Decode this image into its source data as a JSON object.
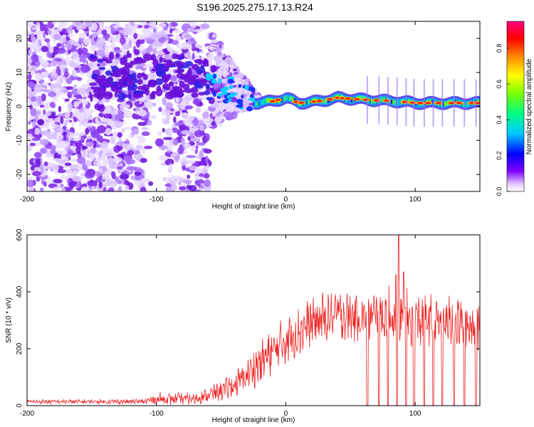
{
  "title": "S196.2025.275.17.13.R24",
  "chart_data": [
    {
      "type": "heatmap",
      "xlabel": "Height of straight line (km)",
      "ylabel": "Frequency (Hz)",
      "xlim": [
        -200,
        150
      ],
      "ylim": [
        -25,
        25
      ],
      "xticks": [
        -200,
        -100,
        0,
        100
      ],
      "yticks": [
        -20,
        -10,
        0,
        10,
        20
      ],
      "colorbar": {
        "label": "Normalized spectral amplitude",
        "range": [
          0,
          0.95
        ],
        "ticks": [
          0.0,
          0.2,
          0.4,
          0.6,
          0.8
        ],
        "tick_labels": [
          "0.0",
          "0.2",
          "0.4",
          "0.6",
          "0.8"
        ],
        "colors": [
          "#ffffff",
          "#8000ff",
          "#0000ff",
          "#00c0ff",
          "#00ff80",
          "#80ff00",
          "#ffff00",
          "#ff8000",
          "#ff0000",
          "#ff0080"
        ]
      },
      "ridge_frequency": [
        {
          "x": -25,
          "y": 1.0
        },
        {
          "x": -10,
          "y": 1.5
        },
        {
          "x": 0,
          "y": 2.5
        },
        {
          "x": 10,
          "y": 1.0
        },
        {
          "x": 25,
          "y": 1.5
        },
        {
          "x": 40,
          "y": 2.5
        },
        {
          "x": 60,
          "y": 2.0
        },
        {
          "x": 85,
          "y": 1.5
        },
        {
          "x": 100,
          "y": 1.0
        },
        {
          "x": 150,
          "y": 1.0
        }
      ]
    },
    {
      "type": "line",
      "xlabel": "Height of straight line (km)",
      "ylabel": "SNR (10 * v/v)",
      "xlim": [
        -200,
        150
      ],
      "ylim": [
        0,
        600
      ],
      "xticks": [
        -200,
        -100,
        0,
        100
      ],
      "yticks": [
        0,
        200,
        400,
        600
      ],
      "color": "#ee2020",
      "envelope": [
        {
          "x": -200,
          "base": 12,
          "amp": 12
        },
        {
          "x": -110,
          "base": 12,
          "amp": 14
        },
        {
          "x": -100,
          "base": 18,
          "amp": 35
        },
        {
          "x": -70,
          "base": 20,
          "amp": 30
        },
        {
          "x": -60,
          "base": 30,
          "amp": 40
        },
        {
          "x": -40,
          "base": 60,
          "amp": 70
        },
        {
          "x": -20,
          "base": 130,
          "amp": 120
        },
        {
          "x": 0,
          "base": 210,
          "amp": 130
        },
        {
          "x": 20,
          "base": 270,
          "amp": 140
        },
        {
          "x": 40,
          "base": 300,
          "amp": 140
        },
        {
          "x": 60,
          "base": 290,
          "amp": 130
        },
        {
          "x": 80,
          "base": 290,
          "amp": 160
        },
        {
          "x": 100,
          "base": 280,
          "amp": 150
        },
        {
          "x": 150,
          "base": 260,
          "amp": 140
        }
      ],
      "peaks": [
        {
          "x": 87,
          "y": 600
        },
        {
          "x": 91,
          "y": 470
        },
        {
          "x": 85,
          "y": 460
        }
      ],
      "dropouts": [
        63,
        72,
        79,
        86,
        93,
        99,
        107,
        114,
        121,
        130,
        138,
        147
      ]
    }
  ]
}
